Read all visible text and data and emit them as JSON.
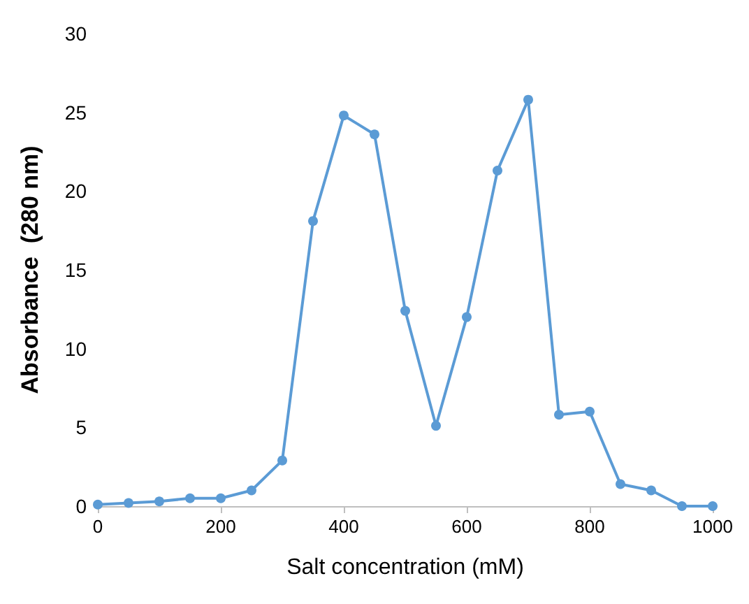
{
  "chart_data": {
    "type": "line",
    "xlabel": "Salt concentration (mM)",
    "ylabel": "Absorbance  (280 nm)",
    "x": [
      0,
      50,
      100,
      150,
      200,
      250,
      300,
      350,
      400,
      450,
      500,
      550,
      600,
      650,
      700,
      750,
      800,
      850,
      900,
      950,
      1000
    ],
    "series": [
      {
        "color": "#5b9bd5",
        "values": [
          0.1,
          0.2,
          0.3,
          0.5,
          0.5,
          1.0,
          2.9,
          18.1,
          24.8,
          23.6,
          12.4,
          5.1,
          12.0,
          21.3,
          25.8,
          5.8,
          6.0,
          1.4,
          1.0,
          0,
          0
        ]
      }
    ],
    "xlim": [
      0,
      1000
    ],
    "xticks": [
      0,
      200,
      400,
      600,
      800,
      {
        "value": 1000,
        "label": "1000"
      }
    ],
    "ylim": [
      0,
      30
    ],
    "yticks": [
      0,
      5,
      10,
      15,
      20,
      25,
      30
    ],
    "grid": false,
    "marker": "circle",
    "line_style": "solid"
  }
}
